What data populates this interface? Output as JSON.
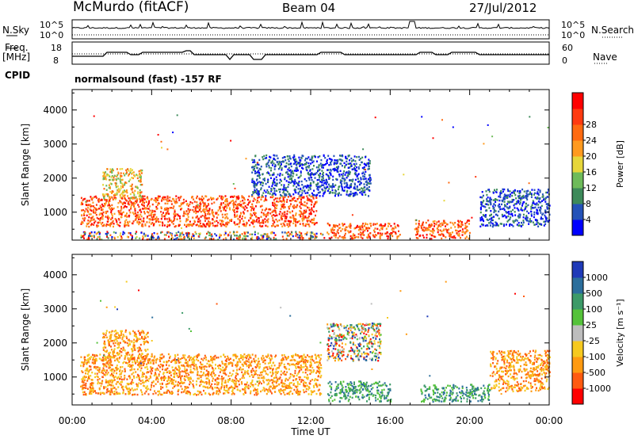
{
  "header": {
    "station": "McMurdo (fitACF)",
    "beam": "Beam 04",
    "date": "27/Jul/2012"
  },
  "panels": {
    "nsky_label": "N.Sky",
    "nsky_ticks": [
      "10^5",
      "10^0"
    ],
    "nsearch_label": "N.Search",
    "nsearch_ticks": [
      "10^5",
      "10^0"
    ],
    "freq_label_1": "Freq.",
    "freq_label_2": "[MHz]",
    "freq_ticks": [
      "18",
      "8"
    ],
    "nave_label": "Nave",
    "nave_ticks": [
      "60",
      "0"
    ],
    "cpid_label": "CPID",
    "cpid_text": "normalsound (fast) -157 RF"
  },
  "chart_data": [
    {
      "type": "heatmap",
      "name": "power",
      "ylabel": "Slant Range [km]",
      "yticks": [
        "1000",
        "2000",
        "3000",
        "4000"
      ],
      "ylim": [
        180,
        4600
      ],
      "xticks": [
        "00:00",
        "04:00",
        "08:00",
        "12:00",
        "16:00",
        "20:00",
        "00:00"
      ],
      "xlim_hours": [
        0,
        24
      ],
      "colorbar": {
        "label": "Power [dB]",
        "ticks": [
          "4",
          "8",
          "12",
          "16",
          "20",
          "24",
          "28"
        ],
        "colors": [
          "#0000ff",
          "#2452b8",
          "#3d8a5a",
          "#6ebb5a",
          "#e6d63a",
          "#ff9a1f",
          "#ff6a10",
          "#ff3a10",
          "#ff0000"
        ]
      },
      "regions": [
        {
          "t0": 0.4,
          "t1": 12.7,
          "r0": 220,
          "r1": 450,
          "level": "mixed-low"
        },
        {
          "t0": 0.4,
          "t1": 12.3,
          "r0": 600,
          "r1": 1500,
          "level": "high"
        },
        {
          "t0": 1.5,
          "t1": 3.5,
          "r0": 1400,
          "r1": 2300,
          "level": "mid"
        },
        {
          "t0": 12.8,
          "t1": 16.5,
          "r0": 250,
          "r1": 700,
          "level": "high"
        },
        {
          "t0": 17.2,
          "t1": 20.0,
          "r0": 250,
          "r1": 800,
          "level": "high"
        },
        {
          "t0": 9.0,
          "t1": 15.0,
          "r0": 1500,
          "r1": 2700,
          "level": "low"
        },
        {
          "t0": 20.5,
          "t1": 24.0,
          "r0": 600,
          "r1": 1700,
          "level": "low"
        }
      ]
    },
    {
      "type": "heatmap",
      "name": "velocity",
      "ylabel": "Slant Range [km]",
      "yticks": [
        "1000",
        "2000",
        "3000",
        "4000"
      ],
      "ylim": [
        180,
        4600
      ],
      "xlabel": "Time UT",
      "xticks": [
        "00:00",
        "04:00",
        "08:00",
        "12:00",
        "16:00",
        "20:00",
        "00:00"
      ],
      "xlim_hours": [
        0,
        24
      ],
      "colorbar": {
        "label": "Velocity [m s⁻¹]",
        "ticks": [
          "1000",
          "500",
          "100",
          "25",
          "-25",
          "-100",
          "-500",
          "-1000"
        ],
        "colors": [
          "#1f3ab8",
          "#2b6e9c",
          "#3c9a68",
          "#55c23a",
          "#bdbdbd",
          "#f6c91f",
          "#ff9a10",
          "#ff5a10",
          "#ff0000"
        ]
      },
      "regions": [
        {
          "t0": 0.4,
          "t1": 12.5,
          "r0": 500,
          "r1": 1700,
          "level": "negative"
        },
        {
          "t0": 1.5,
          "t1": 3.8,
          "r0": 1500,
          "r1": 2400,
          "level": "negative"
        },
        {
          "t0": 12.8,
          "t1": 16.0,
          "r0": 300,
          "r1": 900,
          "level": "positive"
        },
        {
          "t0": 17.5,
          "t1": 21.0,
          "r0": 300,
          "r1": 800,
          "level": "positive"
        },
        {
          "t0": 12.8,
          "t1": 15.5,
          "r0": 1500,
          "r1": 2600,
          "level": "mixed"
        },
        {
          "t0": 21.0,
          "t1": 24.0,
          "r0": 600,
          "r1": 1800,
          "level": "negative"
        }
      ]
    }
  ]
}
